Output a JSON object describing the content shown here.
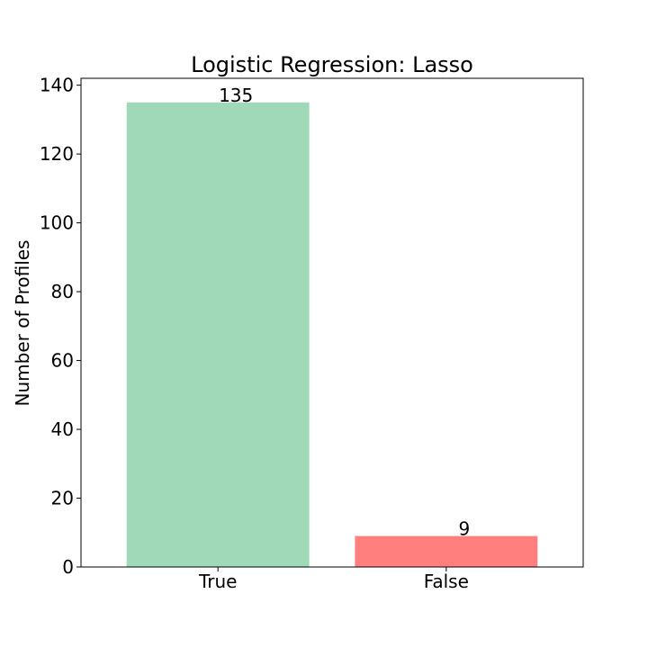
{
  "chart_data": {
    "type": "bar",
    "title": "Logistic Regression: Lasso",
    "xlabel": "",
    "ylabel": "Number of Profiles",
    "categories": [
      "True",
      "False"
    ],
    "values": [
      135,
      9
    ],
    "data_labels": [
      "135",
      "9"
    ],
    "colors": [
      "#9fd9b7",
      "#ff7f7f"
    ],
    "ylim": [
      0,
      142
    ],
    "yticks": [
      0,
      20,
      40,
      60,
      80,
      100,
      120,
      140
    ],
    "grid": false,
    "legend": "none"
  }
}
